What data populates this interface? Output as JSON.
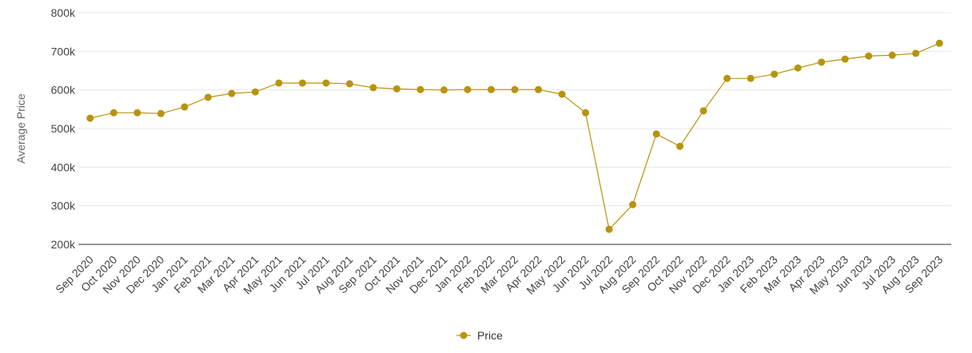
{
  "chart_data": {
    "type": "line",
    "y_label": "Average Price",
    "categories": [
      "Sep 2020",
      "Oct 2020",
      "Nov 2020",
      "Dec 2020",
      "Jan 2021",
      "Feb 2021",
      "Mar 2021",
      "Apr 2021",
      "May 2021",
      "Jun 2021",
      "Jul 2021",
      "Aug 2021",
      "Sep 2021",
      "Oct 2021",
      "Nov 2021",
      "Dec 2021",
      "Jan 2022",
      "Feb 2022",
      "Mar 2022",
      "Apr 2022",
      "May 2022",
      "Jun 2022",
      "Jul 2022",
      "Aug 2022",
      "Sep 2022",
      "Oct 2022",
      "Nov 2022",
      "Dec 2022",
      "Jan 2023",
      "Feb 2023",
      "Mar 2023",
      "Apr 2023",
      "May 2023",
      "Jun 2023",
      "Jul 2023",
      "Aug 2023",
      "Sep 2023"
    ],
    "series": [
      {
        "name": "Price",
        "color": "#b8930c",
        "values": [
          527000,
          541000,
          541000,
          539000,
          556000,
          581000,
          591000,
          595000,
          618000,
          618000,
          618000,
          616000,
          606000,
          603000,
          601000,
          600000,
          601000,
          601000,
          601000,
          601000,
          589000,
          541000,
          239000,
          303000,
          486000,
          454000,
          546000,
          630000,
          630000,
          641000,
          657000,
          672000,
          680000,
          688000,
          690000,
          695000,
          721000
        ]
      }
    ],
    "ylim": [
      200000,
      800000
    ],
    "yticks": [
      {
        "value": 200000,
        "label": "200k"
      },
      {
        "value": 300000,
        "label": "300k"
      },
      {
        "value": 400000,
        "label": "400k"
      },
      {
        "value": 500000,
        "label": "500k"
      },
      {
        "value": 600000,
        "label": "600k"
      },
      {
        "value": 700000,
        "label": "700k"
      },
      {
        "value": 800000,
        "label": "800k"
      }
    ],
    "grid": true,
    "legend": "bottom"
  }
}
